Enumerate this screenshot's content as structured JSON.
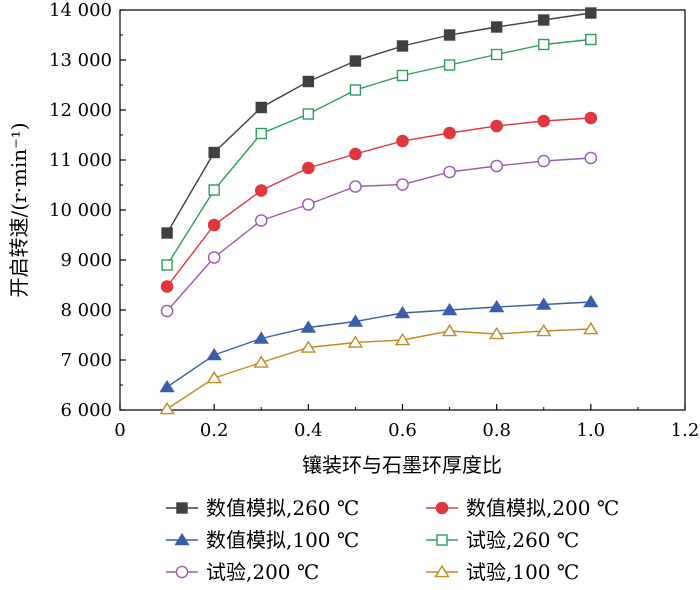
{
  "chart_data": {
    "type": "line",
    "title": "",
    "xlabel": "镶装环与石墨环厚度比",
    "ylabel": "开启转速/(r·min⁻¹)",
    "xlim": [
      0,
      1.2
    ],
    "ylim": [
      6000,
      14000
    ],
    "grid": false,
    "x_ticks": [
      0,
      0.2,
      0.4,
      0.6,
      0.8,
      1.0,
      1.2
    ],
    "x_tick_labels": [
      "0",
      "0.2",
      "0.4",
      "0.6",
      "0.8",
      "1.0",
      "1.2"
    ],
    "y_ticks": [
      6000,
      7000,
      8000,
      9000,
      10000,
      11000,
      12000,
      13000,
      14000
    ],
    "y_tick_labels": [
      "6 000",
      "7 000",
      "8 000",
      "9 000",
      "10 000",
      "11 000",
      "12 000",
      "13 000",
      "14 000"
    ],
    "x": [
      0.1,
      0.2,
      0.3,
      0.4,
      0.5,
      0.6,
      0.7,
      0.8,
      0.9,
      1.0
    ],
    "legend_position": "bottom",
    "series": [
      {
        "name": "数值模拟,260 ℃",
        "color": "#404040",
        "marker": "square",
        "filled": true,
        "values": [
          9540,
          11150,
          12050,
          12570,
          12980,
          13280,
          13500,
          13660,
          13800,
          13940
        ]
      },
      {
        "name": "数值模拟,200 ℃",
        "color": "#e0383e",
        "marker": "circle",
        "filled": true,
        "values": [
          8470,
          9700,
          10390,
          10840,
          11120,
          11380,
          11540,
          11680,
          11780,
          11840
        ]
      },
      {
        "name": "数值模拟,100 ℃",
        "color": "#3a5ea8",
        "marker": "triangle",
        "filled": true,
        "values": [
          6460,
          7100,
          7430,
          7650,
          7770,
          7940,
          8000,
          8060,
          8110,
          8160
        ]
      },
      {
        "name": "试验,260 ℃",
        "color": "#2e9e5a",
        "marker": "square",
        "filled": false,
        "values": [
          8900,
          10400,
          11530,
          11920,
          12400,
          12690,
          12900,
          13110,
          13310,
          13410
        ]
      },
      {
        "name": "试验,200 ℃",
        "color": "#9d5bb0",
        "marker": "circle",
        "filled": false,
        "values": [
          7980,
          9050,
          9790,
          10110,
          10470,
          10510,
          10760,
          10880,
          10980,
          11040
        ]
      },
      {
        "name": "试验,100 ℃",
        "color": "#c48a22",
        "marker": "triangle",
        "filled": false,
        "values": [
          6020,
          6640,
          6950,
          7250,
          7350,
          7400,
          7580,
          7520,
          7580,
          7620
        ]
      }
    ]
  }
}
